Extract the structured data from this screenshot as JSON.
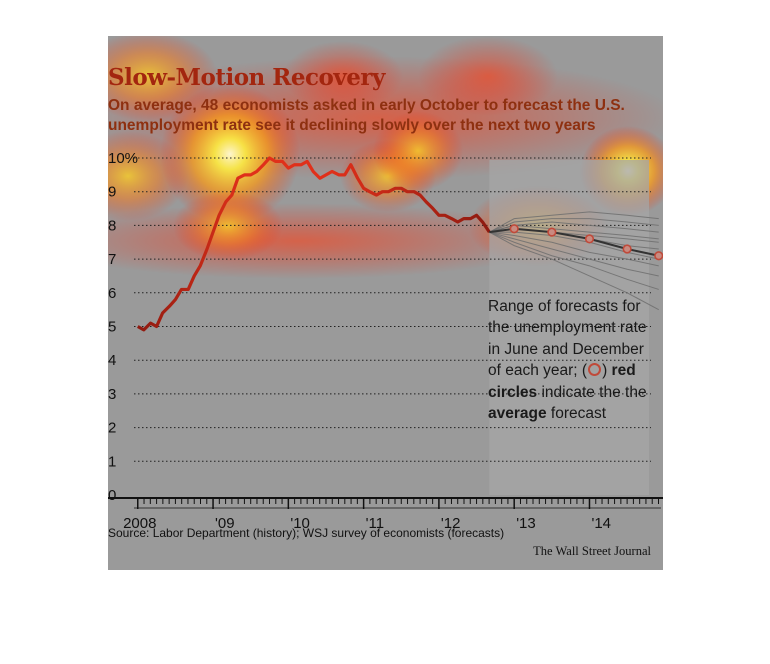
{
  "chart_data": {
    "type": "line",
    "title": "Slow-Motion Recovery",
    "subtitle": "On average, 48 economists asked in early October to forecast the U.S. unemployment rate see it declining slowly over the next two years",
    "ylim": [
      0,
      10
    ],
    "y_ticks": [
      "0",
      "1",
      "2",
      "3",
      "4",
      "5",
      "6",
      "7",
      "8",
      "9",
      "10%"
    ],
    "x_tick_labels": [
      {
        "label": "2008",
        "x": 2008.0
      },
      {
        "label": "'09",
        "x": 2009.0
      },
      {
        "label": "'10",
        "x": 2010.0
      },
      {
        "label": "'11",
        "x": 2011.0
      },
      {
        "label": "'12",
        "x": 2012.0
      },
      {
        "label": "'13",
        "x": 2013.0
      },
      {
        "label": "'14",
        "x": 2014.0
      }
    ],
    "xlim": [
      2007.95,
      2014.95
    ],
    "series": [
      {
        "name": "Unemployment rate (history)",
        "x": [
          2008.0,
          2008.08,
          2008.17,
          2008.25,
          2008.33,
          2008.42,
          2008.5,
          2008.58,
          2008.67,
          2008.75,
          2008.83,
          2008.92,
          2009.0,
          2009.08,
          2009.17,
          2009.25,
          2009.33,
          2009.42,
          2009.5,
          2009.58,
          2009.67,
          2009.75,
          2009.83,
          2009.92,
          2010.0,
          2010.08,
          2010.17,
          2010.25,
          2010.33,
          2010.42,
          2010.5,
          2010.58,
          2010.67,
          2010.75,
          2010.83,
          2010.92,
          2011.0,
          2011.08,
          2011.17,
          2011.25,
          2011.33,
          2011.42,
          2011.5,
          2011.58,
          2011.67,
          2011.75,
          2011.83,
          2011.92,
          2012.0,
          2012.08,
          2012.17,
          2012.25,
          2012.33,
          2012.42,
          2012.5,
          2012.58,
          2012.67
        ],
        "values": [
          5.0,
          4.9,
          5.1,
          5.0,
          5.4,
          5.6,
          5.8,
          6.1,
          6.1,
          6.5,
          6.8,
          7.3,
          7.8,
          8.3,
          8.7,
          8.9,
          9.4,
          9.5,
          9.5,
          9.6,
          9.8,
          10.0,
          9.9,
          9.9,
          9.7,
          9.8,
          9.8,
          9.9,
          9.6,
          9.4,
          9.5,
          9.6,
          9.5,
          9.5,
          9.8,
          9.4,
          9.1,
          9.0,
          8.9,
          9.0,
          9.0,
          9.1,
          9.1,
          9.0,
          9.0,
          8.9,
          8.7,
          8.5,
          8.3,
          8.3,
          8.2,
          8.1,
          8.2,
          8.2,
          8.3,
          8.1,
          7.8
        ]
      },
      {
        "name": "Average forecast (red circles)",
        "x": [
          2012.67,
          2013.0,
          2013.5,
          2014.0,
          2014.5,
          2014.92
        ],
        "values": [
          7.8,
          7.9,
          7.8,
          7.6,
          7.3,
          7.1
        ]
      }
    ],
    "forecast_range": {
      "x": [
        2013.0,
        2013.5,
        2014.0,
        2014.5,
        2014.92
      ],
      "individual_forecasts": [
        [
          8.2,
          8.3,
          8.4,
          8.3,
          8.2
        ],
        [
          8.1,
          8.2,
          8.2,
          8.1,
          8.0
        ],
        [
          8.0,
          8.1,
          8.0,
          7.9,
          7.8
        ],
        [
          8.0,
          7.9,
          7.8,
          7.7,
          7.6
        ],
        [
          7.9,
          7.8,
          7.7,
          7.6,
          7.5
        ],
        [
          7.9,
          7.8,
          7.6,
          7.4,
          7.3
        ],
        [
          7.8,
          7.7,
          7.5,
          7.2,
          7.0
        ],
        [
          7.7,
          7.5,
          7.2,
          7.0,
          6.8
        ],
        [
          7.6,
          7.3,
          7.0,
          6.7,
          6.5
        ],
        [
          7.5,
          7.1,
          6.8,
          6.4,
          6.1
        ],
        [
          7.4,
          7.0,
          6.5,
          6.0,
          5.5
        ]
      ]
    },
    "annotation": {
      "part1": "Range of forecasts for the unemployment rate in June and December of each year; (",
      "part2": ") ",
      "bold1": "red circles",
      "part3": " indicate the the ",
      "bold2": "average",
      "part4": " forecast"
    },
    "source": "Source: Labor Department (history); WSJ survey of economists (forecasts)",
    "publisher": "The Wall Street Journal"
  },
  "colors": {
    "panel": "#9a9a9a",
    "title": "#a3260f",
    "line_dark": "#8e1a10",
    "line_bright": "#e0301a",
    "forecast_band": "#a6a6a6",
    "forecast_lines": "#6e6e6e",
    "circle": "#c04a3a"
  }
}
